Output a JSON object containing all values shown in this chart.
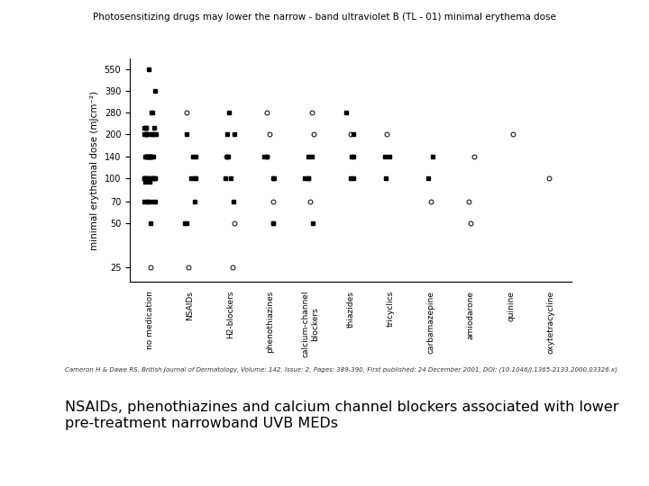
{
  "title": "Photosensitizing drugs may lower the narrow - band ultraviolet B (TL - 01) minimal erythema dose",
  "ylabel": "minimal erythemaI dose (mJcm⁻²)",
  "citation": "Cameron H & Dawe RS. British Journal of Dermatology, Volume: 142, Issue: 2, Pages: 389-390, First published: 24 December 2001, DOI: (10.1046/j.1365-2133.2000.03326.x)",
  "bottom_text": "NSAIDs, phenothiazines and calcium channel blockers associated with lower\npre-treatment narrowband UVB MEDs",
  "categories": [
    "no medication",
    "NSAIDs",
    "H2-blockers",
    "phenothiazines",
    "calcium-channel\nblockers",
    "thiazides",
    "tricyclics",
    "carbamazepine",
    "amiodarone",
    "quinine",
    "oxytetracycline"
  ],
  "yticks": [
    25,
    50,
    70,
    100,
    140,
    200,
    280,
    390,
    550
  ],
  "ylim": [
    20,
    650
  ],
  "data": {
    "no medication": {
      "filled": [
        550,
        390,
        280,
        280,
        220,
        220,
        220,
        220,
        200,
        200,
        200,
        200,
        200,
        200,
        200,
        200,
        200,
        140,
        140,
        140,
        140,
        140,
        140,
        140,
        140,
        140,
        140,
        140,
        140,
        100,
        100,
        100,
        100,
        100,
        100,
        100,
        100,
        100,
        100,
        100,
        95,
        95,
        70,
        70,
        70,
        70,
        70,
        50
      ],
      "open": [
        25
      ]
    },
    "NSAIDs": {
      "filled": [
        200,
        140,
        140,
        100,
        100,
        100,
        70,
        50,
        50
      ],
      "open": [
        280,
        25
      ]
    },
    "H2-blockers": {
      "filled": [
        280,
        200,
        200,
        140,
        140,
        100,
        100,
        70
      ],
      "open": [
        140,
        50,
        25
      ]
    },
    "phenothiazines": {
      "filled": [
        140,
        140,
        100,
        100,
        50,
        50
      ],
      "open": [
        280,
        200,
        140,
        70
      ]
    },
    "calcium-channel\nblockers": {
      "filled": [
        140,
        140,
        100,
        100,
        100,
        50
      ],
      "open": [
        280,
        200,
        70
      ]
    },
    "thiazides": {
      "filled": [
        280,
        200,
        140,
        140,
        100,
        100
      ],
      "open": [
        200
      ]
    },
    "tricyclics": {
      "filled": [
        140,
        140,
        100
      ],
      "open": [
        200
      ]
    },
    "carbamazepine": {
      "filled": [
        140,
        100
      ],
      "open": [
        70
      ]
    },
    "amiodarone": {
      "filled": [],
      "open": [
        140,
        70,
        50
      ]
    },
    "quinine": {
      "filled": [],
      "open": [
        200
      ]
    },
    "oxytetracycline": {
      "filled": [],
      "open": [
        100
      ]
    }
  },
  "marker_size_filled": 2.5,
  "marker_size_open": 3.5,
  "filled_color": "#000000",
  "open_color": "#000000"
}
